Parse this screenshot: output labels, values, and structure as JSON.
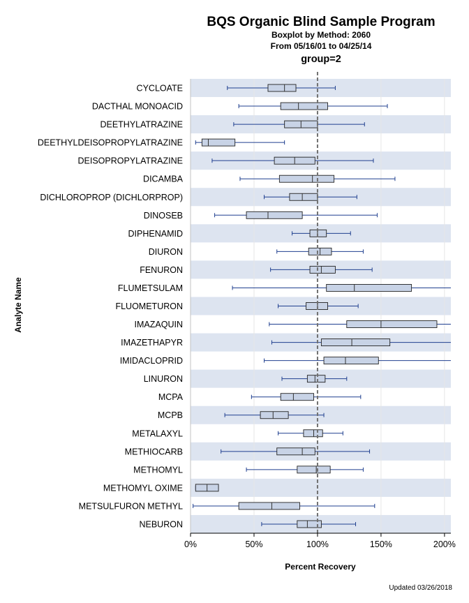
{
  "colors": {
    "band": "#dde4f0",
    "box_fill": "#c8d3e6",
    "box_stroke": "#222222",
    "whisker": "#1f3f8f",
    "median": "#333333",
    "grid": "#e6e6e6",
    "ref_line": "#707070"
  },
  "chart_data": {
    "type": "boxplot",
    "title": "BQS Organic Blind Sample Program",
    "subtitle1": "Boxplot by Method: 2060",
    "subtitle2": "From 05/16/01 to 04/25/14",
    "group_label": "group=2",
    "xlabel": "Percent Recovery",
    "ylabel": "Analyte Name",
    "xlim": [
      0,
      205
    ],
    "xticks": [
      0,
      50,
      100,
      150,
      200
    ],
    "xtick_labels": [
      "0%",
      "50%",
      "100%",
      "150%",
      "200%"
    ],
    "reference_line": 100,
    "footnote": "Updated 03/26/2018",
    "series": [
      {
        "name": "CYCLOATE",
        "min": 29,
        "q1": 61,
        "median": 74,
        "q3": 83,
        "max": 114
      },
      {
        "name": "DACTHAL MONOACID",
        "min": 38,
        "q1": 71,
        "median": 85,
        "q3": 108,
        "max": 155
      },
      {
        "name": "DEETHYLATRAZINE",
        "min": 34,
        "q1": 74,
        "median": 87,
        "q3": 100,
        "max": 137
      },
      {
        "name": "DEETHYLDEISOPROPYLATRAZINE",
        "min": 4,
        "q1": 9,
        "median": 14,
        "q3": 35,
        "max": 74
      },
      {
        "name": "DEISOPROPYLATRAZINE",
        "min": 17,
        "q1": 66,
        "median": 82,
        "q3": 98,
        "max": 144
      },
      {
        "name": "DICAMBA",
        "min": 39,
        "q1": 70,
        "median": 96,
        "q3": 113,
        "max": 161
      },
      {
        "name": "DICHLOROPROP (DICHLORPROP)",
        "min": 58,
        "q1": 78,
        "median": 88,
        "q3": 100,
        "max": 131
      },
      {
        "name": "DINOSEB",
        "min": 19,
        "q1": 44,
        "median": 61,
        "q3": 88,
        "max": 147
      },
      {
        "name": "DIPHENAMID",
        "min": 80,
        "q1": 94,
        "median": 100,
        "q3": 107,
        "max": 126
      },
      {
        "name": "DIURON",
        "min": 68,
        "q1": 93,
        "median": 102,
        "q3": 111,
        "max": 136
      },
      {
        "name": "FENURON",
        "min": 63,
        "q1": 94,
        "median": 103,
        "q3": 114,
        "max": 143
      },
      {
        "name": "FLUMETSULAM",
        "min": 33,
        "q1": 107,
        "median": 129,
        "q3": 174,
        "max": 205
      },
      {
        "name": "FLUOMETURON",
        "min": 69,
        "q1": 91,
        "median": 100,
        "q3": 108,
        "max": 132
      },
      {
        "name": "IMAZAQUIN",
        "min": 62,
        "q1": 123,
        "median": 150,
        "q3": 194,
        "max": 205
      },
      {
        "name": "IMAZETHAPYR",
        "min": 64,
        "q1": 103,
        "median": 127,
        "q3": 157,
        "max": 205
      },
      {
        "name": "IMIDACLOPRID",
        "min": 58,
        "q1": 105,
        "median": 122,
        "q3": 148,
        "max": 205
      },
      {
        "name": "LINURON",
        "min": 72,
        "q1": 92,
        "median": 98,
        "q3": 106,
        "max": 123
      },
      {
        "name": "MCPA",
        "min": 48,
        "q1": 71,
        "median": 81,
        "q3": 97,
        "max": 134
      },
      {
        "name": "MCPB",
        "min": 27,
        "q1": 55,
        "median": 65,
        "q3": 77,
        "max": 105
      },
      {
        "name": "METALAXYL",
        "min": 69,
        "q1": 89,
        "median": 97,
        "q3": 104,
        "max": 120
      },
      {
        "name": "METHIOCARB",
        "min": 24,
        "q1": 68,
        "median": 88,
        "q3": 98,
        "max": 141
      },
      {
        "name": "METHOMYL",
        "min": 44,
        "q1": 84,
        "median": 99,
        "q3": 110,
        "max": 136
      },
      {
        "name": "METHOMYL OXIME",
        "min": 4,
        "q1": 4,
        "median": 13,
        "q3": 22,
        "max": 22
      },
      {
        "name": "METSULFURON METHYL",
        "min": 2,
        "q1": 38,
        "median": 64,
        "q3": 86,
        "max": 145
      },
      {
        "name": "NEBURON",
        "min": 56,
        "q1": 84,
        "median": 92,
        "q3": 103,
        "max": 130
      }
    ]
  }
}
